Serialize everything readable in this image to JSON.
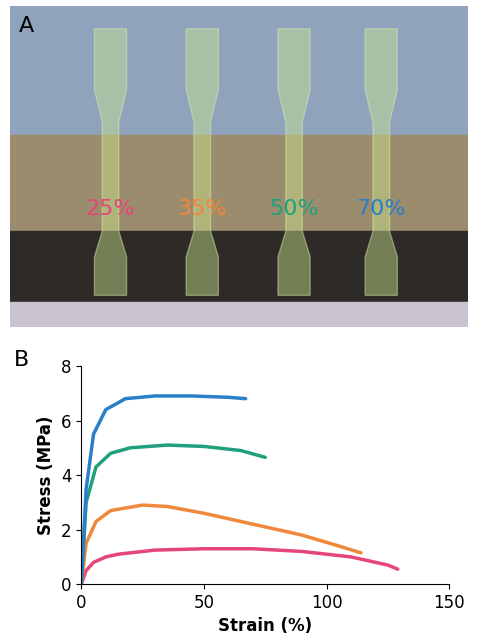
{
  "panel_a": {
    "label": "A",
    "specimens": [
      {
        "text": "25%",
        "color": "#e6457a"
      },
      {
        "text": "35%",
        "color": "#f0883c"
      },
      {
        "text": "50%",
        "color": "#21a07d"
      },
      {
        "text": "70%",
        "color": "#2a7fc9"
      }
    ]
  },
  "chart_data": {
    "type": "line",
    "panel_label": "B",
    "x_label": "Strain (%)",
    "y_label": "Stress (MPa)",
    "xlim": [
      0,
      150
    ],
    "xticks": [
      0,
      50,
      100,
      150
    ],
    "ylim": [
      0,
      8
    ],
    "yticks": [
      0,
      2,
      4,
      6,
      8
    ],
    "grid": false,
    "series": [
      {
        "color": "#e6457a",
        "x": [
          0,
          2,
          5,
          10,
          15,
          30,
          50,
          70,
          90,
          110,
          125,
          129
        ],
        "values": [
          0,
          0.5,
          0.8,
          1.0,
          1.1,
          1.25,
          1.3,
          1.3,
          1.2,
          1.0,
          0.7,
          0.55
        ]
      },
      {
        "color": "#f0883c",
        "x": [
          0,
          2,
          6,
          12,
          25,
          35,
          50,
          70,
          90,
          105,
          114
        ],
        "values": [
          0,
          1.5,
          2.3,
          2.7,
          2.9,
          2.85,
          2.6,
          2.2,
          1.8,
          1.4,
          1.15
        ]
      },
      {
        "color": "#21a07d",
        "x": [
          0,
          2,
          6,
          12,
          20,
          35,
          50,
          65,
          75
        ],
        "values": [
          0,
          3.0,
          4.3,
          4.8,
          5.0,
          5.1,
          5.05,
          4.9,
          4.65
        ]
      },
      {
        "color": "#2a7fc9",
        "x": [
          0,
          2,
          5,
          10,
          18,
          30,
          45,
          60,
          67
        ],
        "values": [
          0,
          3.5,
          5.5,
          6.4,
          6.8,
          6.9,
          6.9,
          6.85,
          6.8
        ]
      }
    ]
  }
}
